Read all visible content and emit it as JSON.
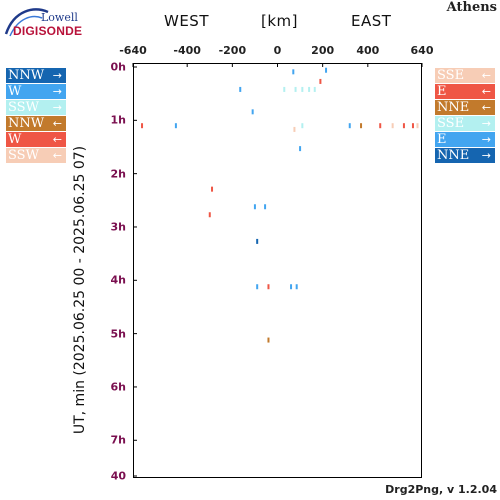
{
  "header": {
    "logo_top": "Lowell",
    "logo_bottom": "DIGISONDE",
    "station": "Athens",
    "west": "WEST",
    "unit": "[km]",
    "east": "EAST"
  },
  "footer": "Drg2Png, v 1.2.04",
  "legend_left": [
    {
      "label": "NNW",
      "arrow": "→",
      "color": "#1565b0"
    },
    {
      "label": "W",
      "arrow": "→",
      "color": "#42a5f0"
    },
    {
      "label": "SSW",
      "arrow": "→",
      "color": "#b3f0f0"
    },
    {
      "label": "NNW",
      "arrow": "←",
      "color": "#c27a2c"
    },
    {
      "label": "W",
      "arrow": "←",
      "color": "#ef5645"
    },
    {
      "label": "SSW",
      "arrow": "←",
      "color": "#f7cdb6"
    }
  ],
  "legend_right": [
    {
      "label": "SSE",
      "arrow": "←",
      "color": "#f7cdb6"
    },
    {
      "label": "E",
      "arrow": "←",
      "color": "#ef5645"
    },
    {
      "label": "NNE",
      "arrow": "←",
      "color": "#c27a2c"
    },
    {
      "label": "SSE",
      "arrow": "→",
      "color": "#b3f0f0"
    },
    {
      "label": "E",
      "arrow": "→",
      "color": "#42a5f0"
    },
    {
      "label": "NNE",
      "arrow": "→",
      "color": "#1565b0"
    }
  ],
  "chart_data": {
    "type": "scatter",
    "xlabel_left": "WEST",
    "xlabel_right": "EAST",
    "xunit": "[km]",
    "ylabel": "UT, min (2025.06.25 00 - 2025.06.25 07)",
    "xlim": [
      -640,
      640
    ],
    "x_ticks": [
      "-640",
      "-400",
      "-200",
      "0",
      "200",
      "400",
      "640"
    ],
    "x_tick_values": [
      -640,
      -400,
      -200,
      0,
      200,
      400,
      640
    ],
    "y_ticks": [
      "0h",
      "1h",
      "2h",
      "3h",
      "4h",
      "5h",
      "6h",
      "7h",
      "40"
    ],
    "y_tick_values": [
      0,
      1,
      2,
      3,
      4,
      5,
      6,
      7,
      7.67
    ],
    "ylim": [
      0,
      7.67
    ],
    "grid": false,
    "points": [
      {
        "x": 70,
        "y": 0.1,
        "color": "#42a5f0"
      },
      {
        "x": 215,
        "y": 0.07,
        "color": "#42a5f0"
      },
      {
        "x": 190,
        "y": 0.28,
        "color": "#ef5645"
      },
      {
        "x": -165,
        "y": 0.43,
        "color": "#42a5f0"
      },
      {
        "x": 30,
        "y": 0.43,
        "color": "#b3f0f0"
      },
      {
        "x": 80,
        "y": 0.43,
        "color": "#b3f0f0"
      },
      {
        "x": 110,
        "y": 0.43,
        "color": "#b3f0f0"
      },
      {
        "x": 140,
        "y": 0.43,
        "color": "#b3f0f0"
      },
      {
        "x": 165,
        "y": 0.43,
        "color": "#b3f0f0"
      },
      {
        "x": -110,
        "y": 0.85,
        "color": "#42a5f0"
      },
      {
        "x": -600,
        "y": 1.11,
        "color": "#ef5645"
      },
      {
        "x": -450,
        "y": 1.11,
        "color": "#42a5f0"
      },
      {
        "x": 110,
        "y": 1.11,
        "color": "#b3f0f0"
      },
      {
        "x": 320,
        "y": 1.11,
        "color": "#42a5f0"
      },
      {
        "x": 370,
        "y": 1.11,
        "color": "#c27a2c"
      },
      {
        "x": 455,
        "y": 1.11,
        "color": "#ef5645"
      },
      {
        "x": 510,
        "y": 1.11,
        "color": "#f7cdb6"
      },
      {
        "x": 560,
        "y": 1.11,
        "color": "#ef5645"
      },
      {
        "x": 600,
        "y": 1.11,
        "color": "#ef5645"
      },
      {
        "x": 620,
        "y": 1.11,
        "color": "#f7cdb6"
      },
      {
        "x": 75,
        "y": 1.18,
        "color": "#f7cdb6"
      },
      {
        "x": 100,
        "y": 1.54,
        "color": "#42a5f0"
      },
      {
        "x": -290,
        "y": 2.3,
        "color": "#ef5645"
      },
      {
        "x": -300,
        "y": 2.78,
        "color": "#ef5645"
      },
      {
        "x": -100,
        "y": 2.63,
        "color": "#42a5f0"
      },
      {
        "x": -55,
        "y": 2.63,
        "color": "#42a5f0"
      },
      {
        "x": -90,
        "y": 3.28,
        "color": "#1565b0"
      },
      {
        "x": -90,
        "y": 4.13,
        "color": "#42a5f0"
      },
      {
        "x": -40,
        "y": 4.13,
        "color": "#ef5645"
      },
      {
        "x": 60,
        "y": 4.13,
        "color": "#42a5f0"
      },
      {
        "x": 85,
        "y": 4.13,
        "color": "#42a5f0"
      },
      {
        "x": -40,
        "y": 5.13,
        "color": "#c27a2c"
      }
    ]
  }
}
